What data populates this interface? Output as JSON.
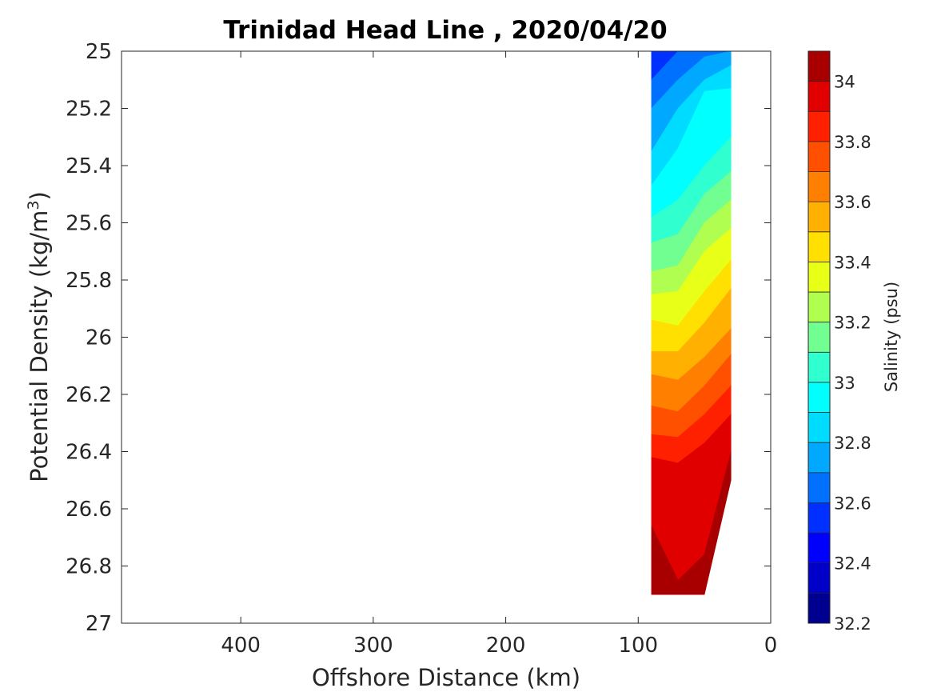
{
  "chart_data": {
    "type": "contour",
    "title": "Trinidad Head Line , 2020/04/20",
    "xlabel": "Offshore Distance (km)",
    "ylabel_main": "Potential Density (kg/m",
    "ylabel_sup": "3",
    "ylabel_close": ")",
    "x_reversed": true,
    "xlim": [
      490,
      0
    ],
    "xticks": [
      400,
      300,
      200,
      100,
      0
    ],
    "y_reversed": true,
    "ylim": [
      25,
      27
    ],
    "yticks": [
      "25",
      "25.2",
      "25.4",
      "25.6",
      "25.8",
      "26",
      "26.2",
      "26.4",
      "26.6",
      "26.8",
      "27"
    ],
    "grid": false,
    "colorbar": {
      "label": "Salinity (psu)",
      "min": 32.2,
      "max": 34.1,
      "step": 0.1,
      "ticks": [
        "32.2",
        "32.4",
        "32.6",
        "32.8",
        "33",
        "33.2",
        "33.4",
        "33.6",
        "33.8",
        "34"
      ],
      "colors": [
        "#000090",
        "#0000c8",
        "#0000ff",
        "#0030ff",
        "#0070ff",
        "#00a8ff",
        "#00dcff",
        "#00ffff",
        "#30ffd0",
        "#70ff90",
        "#b0ff50",
        "#e8ff18",
        "#ffe000",
        "#ffb000",
        "#ff8000",
        "#ff5000",
        "#ff2000",
        "#e00000",
        "#a80000"
      ]
    },
    "station_x_km": [
      90,
      70,
      50,
      30
    ],
    "section_top_density": 25,
    "section_bottom_density": [
      26.9,
      26.9,
      26.9,
      26.5
    ],
    "isohalines": [
      {
        "salinity": 32.5,
        "density": [
          25.0,
          25.0,
          25.0,
          25.0
        ]
      },
      {
        "salinity": 32.6,
        "density": [
          25.1,
          24.98,
          24.96,
          24.95
        ]
      },
      {
        "salinity": 32.7,
        "density": [
          25.2,
          25.1,
          25.02,
          24.99
        ]
      },
      {
        "salinity": 32.8,
        "density": [
          25.35,
          25.2,
          25.1,
          25.05
        ]
      },
      {
        "salinity": 32.9,
        "density": [
          25.47,
          25.34,
          25.14,
          25.13
        ]
      },
      {
        "salinity": 33.0,
        "density": [
          25.58,
          25.52,
          25.4,
          25.3
        ]
      },
      {
        "salinity": 33.1,
        "density": [
          25.67,
          25.64,
          25.5,
          25.42
        ]
      },
      {
        "salinity": 33.2,
        "density": [
          25.77,
          25.75,
          25.6,
          25.52
        ]
      },
      {
        "salinity": 33.3,
        "density": [
          25.85,
          25.84,
          25.7,
          25.62
        ]
      },
      {
        "salinity": 33.4,
        "density": [
          25.94,
          25.96,
          25.84,
          25.73
        ]
      },
      {
        "salinity": 33.5,
        "density": [
          26.05,
          26.05,
          25.95,
          25.83
        ]
      },
      {
        "salinity": 33.6,
        "density": [
          26.13,
          26.15,
          26.07,
          25.97
        ]
      },
      {
        "salinity": 33.7,
        "density": [
          26.24,
          26.26,
          26.17,
          26.06
        ]
      },
      {
        "salinity": 33.8,
        "density": [
          26.34,
          26.35,
          26.27,
          26.17
        ]
      },
      {
        "salinity": 33.9,
        "density": [
          26.42,
          26.44,
          26.37,
          26.27
        ]
      },
      {
        "salinity": 34.0,
        "density": [
          26.66,
          26.85,
          26.76,
          26.4
        ]
      }
    ]
  }
}
